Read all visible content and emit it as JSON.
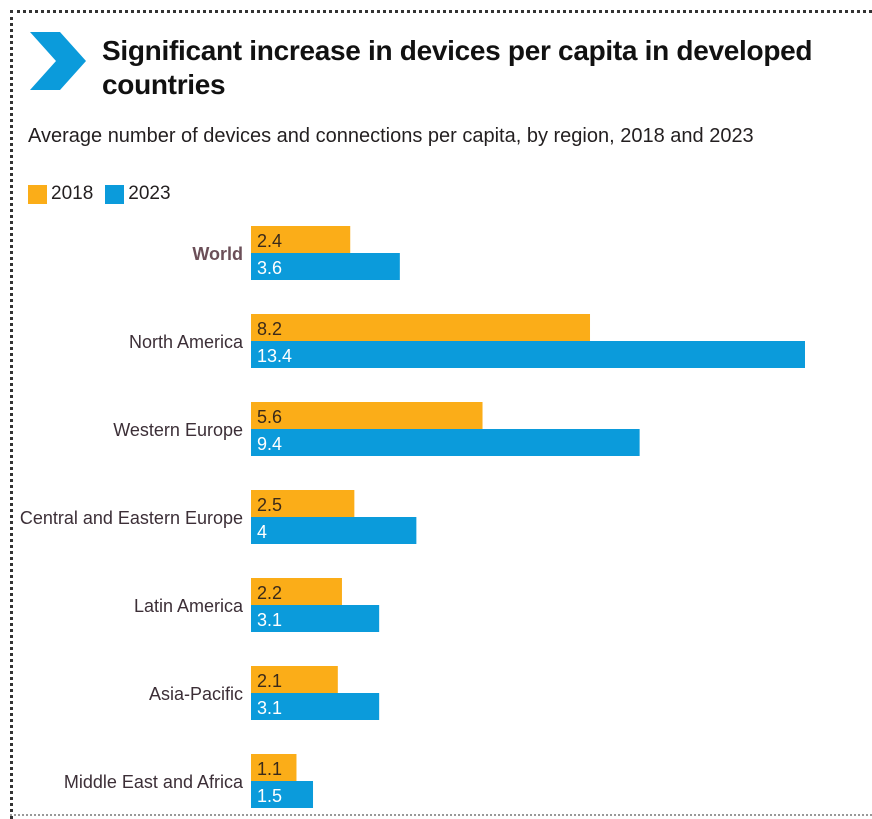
{
  "header": {
    "title": "Significant increase in devices per capita in developed countries",
    "subtitle": "Average number of devices and connections per capita, by region, 2018 and 2023"
  },
  "colors": {
    "series_2018": "#fbad18",
    "series_2023": "#0b9bdb",
    "chevron": "#0b9bdb",
    "label_text": "#3c2f37",
    "world_label": "#6b4f58"
  },
  "chart_data": {
    "type": "bar",
    "orientation": "horizontal",
    "title": "Significant increase in devices per capita in developed countries",
    "subtitle": "Average number of devices and connections per capita, by region, 2018 and 2023",
    "categories": [
      "World",
      "North America",
      "Western Europe",
      "Central and Eastern Europe",
      "Latin America",
      "Asia-Pacific",
      "Middle East and Africa"
    ],
    "series": [
      {
        "name": "2018",
        "values": [
          2.4,
          8.2,
          5.6,
          2.5,
          2.2,
          2.1,
          1.1
        ],
        "labels": [
          "2.4",
          "8.2",
          "5.6",
          "2.5",
          "2.2",
          "2.1",
          "1.1"
        ]
      },
      {
        "name": "2023",
        "values": [
          3.6,
          13.4,
          9.4,
          4,
          3.1,
          3.1,
          1.5
        ],
        "labels": [
          "3.6",
          "13.4",
          "9.4",
          "4",
          "3.1",
          "3.1",
          "1.5"
        ]
      }
    ],
    "xlim": [
      0,
      13.4
    ],
    "grid": false,
    "legend_position": "top-left",
    "emphasized_category": "World"
  }
}
